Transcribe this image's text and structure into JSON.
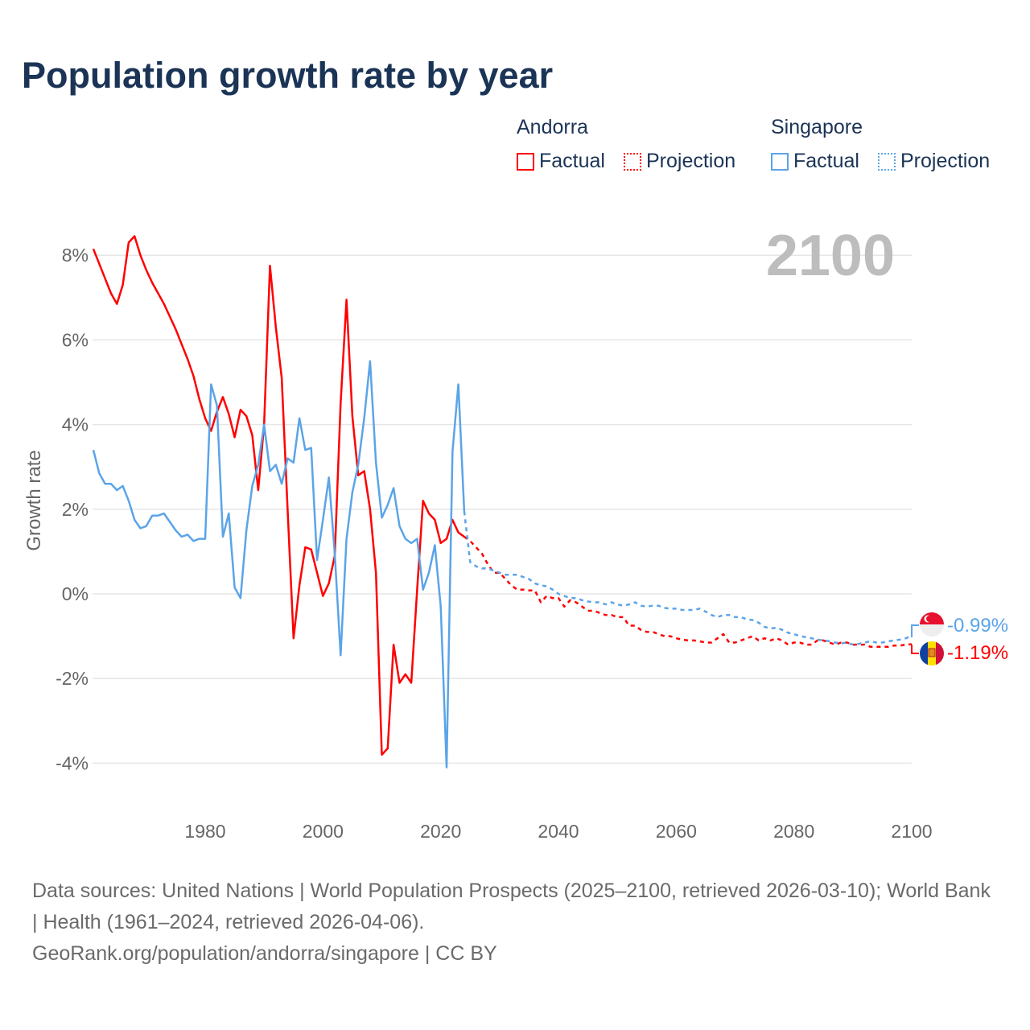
{
  "title": "Population growth rate by year",
  "legend": {
    "groups": [
      {
        "name": "Andorra",
        "factual": "Factual",
        "projection": "Projection",
        "color": "#ff0000"
      },
      {
        "name": "Singapore",
        "factual": "Factual",
        "projection": "Projection",
        "color": "#5ba4e8"
      }
    ]
  },
  "year_label": "2100",
  "footer": {
    "sources": "Data sources: United Nations | World Population Prospects (2025–2100, retrieved 2026-03-10); World Bank | Health (1961–2024, retrieved 2026-04-06).",
    "link": "GeoRank.org/population/andorra/singapore | CC BY"
  },
  "end_labels": {
    "singapore": "-0.99%",
    "andorra": "-1.19%"
  },
  "chart_data": {
    "type": "line",
    "title": "Population growth rate by year",
    "xlabel": "",
    "ylabel": "Growth rate",
    "xlim": [
      1961,
      2100
    ],
    "ylim": [
      -4.6,
      9
    ],
    "xticks": [
      {
        "v": 1980,
        "l": "1980"
      },
      {
        "v": 2000,
        "l": "2000"
      },
      {
        "v": 2020,
        "l": "2020"
      },
      {
        "v": 2040,
        "l": "2040"
      },
      {
        "v": 2060,
        "l": "2060"
      },
      {
        "v": 2080,
        "l": "2080"
      },
      {
        "v": 2100,
        "l": "2100"
      }
    ],
    "yticks": [
      {
        "v": 8,
        "l": "8%"
      },
      {
        "v": 6,
        "l": "6%"
      },
      {
        "v": 4,
        "l": "4%"
      },
      {
        "v": 2,
        "l": "2%"
      },
      {
        "v": 0,
        "l": "0%"
      },
      {
        "v": -2,
        "l": "-2%"
      },
      {
        "v": -4,
        "l": "-4%"
      }
    ],
    "grid": true,
    "legend_position": "top-right",
    "series": [
      {
        "name": "Andorra Factual",
        "country": "andorra",
        "kind": "factual",
        "start": 1961,
        "values": [
          8.15,
          7.8,
          7.45,
          7.1,
          6.85,
          7.3,
          8.3,
          8.45,
          8.0,
          7.65,
          7.35,
          7.1,
          6.85,
          6.55,
          6.25,
          5.9,
          5.55,
          5.15,
          4.6,
          4.15,
          3.85,
          4.3,
          4.65,
          4.25,
          3.7,
          4.35,
          4.2,
          3.75,
          2.45,
          4.0,
          7.75,
          6.3,
          5.1,
          2.0,
          -1.05,
          0.2,
          1.1,
          1.05,
          0.5,
          -0.05,
          0.25,
          0.9,
          4.5,
          6.95,
          4.2,
          2.8,
          2.9,
          2.0,
          0.5,
          -3.8,
          -3.65,
          -1.2,
          -2.1,
          -1.9,
          -2.1,
          0.1,
          2.2,
          1.9,
          1.75,
          1.2,
          1.3,
          1.75,
          1.45,
          1.35
        ]
      },
      {
        "name": "Singapore Factual",
        "country": "singapore",
        "kind": "factual",
        "start": 1961,
        "values": [
          3.4,
          2.85,
          2.6,
          2.6,
          2.45,
          2.55,
          2.2,
          1.75,
          1.55,
          1.6,
          1.85,
          1.85,
          1.9,
          1.7,
          1.5,
          1.35,
          1.4,
          1.25,
          1.3,
          1.3,
          4.95,
          4.45,
          1.35,
          1.9,
          0.15,
          -0.1,
          1.5,
          2.55,
          3.05,
          4.0,
          2.9,
          3.05,
          2.6,
          3.2,
          3.1,
          4.15,
          3.4,
          3.45,
          0.8,
          1.75,
          2.75,
          0.95,
          -1.45,
          1.3,
          2.4,
          3.05,
          4.15,
          5.5,
          3.1,
          1.8,
          2.1,
          2.5,
          1.6,
          1.3,
          1.2,
          1.3,
          0.1,
          0.5,
          1.15,
          -0.3,
          -4.1,
          3.35,
          4.95,
          1.95
        ]
      },
      {
        "name": "Andorra Projection",
        "country": "andorra",
        "kind": "projection",
        "start": 2024,
        "values": [
          1.35,
          1.25,
          1.1,
          0.95,
          0.7,
          0.5,
          0.5,
          0.35,
          0.2,
          0.1,
          0.1,
          0.08,
          0.08,
          -0.2,
          -0.05,
          -0.1,
          -0.1,
          -0.3,
          -0.15,
          -0.2,
          -0.3,
          -0.4,
          -0.4,
          -0.45,
          -0.5,
          -0.5,
          -0.55,
          -0.55,
          -0.75,
          -0.75,
          -0.85,
          -0.9,
          -0.9,
          -0.95,
          -1.0,
          -1.0,
          -1.05,
          -1.08,
          -1.1,
          -1.1,
          -1.12,
          -1.15,
          -1.15,
          -1.05,
          -0.95,
          -1.15,
          -1.15,
          -1.1,
          -1.05,
          -1.0,
          -1.1,
          -1.05,
          -1.1,
          -1.05,
          -1.1,
          -1.2,
          -1.15,
          -1.15,
          -1.2,
          -1.2,
          -1.1,
          -1.1,
          -1.15,
          -1.2,
          -1.15,
          -1.15,
          -1.2,
          -1.2,
          -1.2,
          -1.25,
          -1.25,
          -1.25,
          -1.25,
          -1.22,
          -1.22,
          -1.2,
          -1.19
        ]
      },
      {
        "name": "Singapore Projection",
        "country": "singapore",
        "kind": "projection",
        "start": 2024,
        "values": [
          1.95,
          0.75,
          0.65,
          0.6,
          0.6,
          0.55,
          0.5,
          0.45,
          0.45,
          0.45,
          0.4,
          0.35,
          0.25,
          0.2,
          0.18,
          0.1,
          0.0,
          -0.05,
          -0.1,
          -0.1,
          -0.15,
          -0.18,
          -0.2,
          -0.2,
          -0.25,
          -0.2,
          -0.25,
          -0.28,
          -0.25,
          -0.2,
          -0.28,
          -0.3,
          -0.28,
          -0.28,
          -0.33,
          -0.35,
          -0.35,
          -0.38,
          -0.38,
          -0.38,
          -0.35,
          -0.42,
          -0.5,
          -0.55,
          -0.5,
          -0.5,
          -0.55,
          -0.55,
          -0.6,
          -0.62,
          -0.68,
          -0.78,
          -0.82,
          -0.8,
          -0.85,
          -0.92,
          -0.95,
          -1.0,
          -1.02,
          -1.05,
          -1.08,
          -1.1,
          -1.12,
          -1.15,
          -1.17,
          -1.15,
          -1.2,
          -1.18,
          -1.15,
          -1.12,
          -1.15,
          -1.15,
          -1.12,
          -1.1,
          -1.08,
          -1.05,
          -0.99
        ]
      }
    ]
  }
}
